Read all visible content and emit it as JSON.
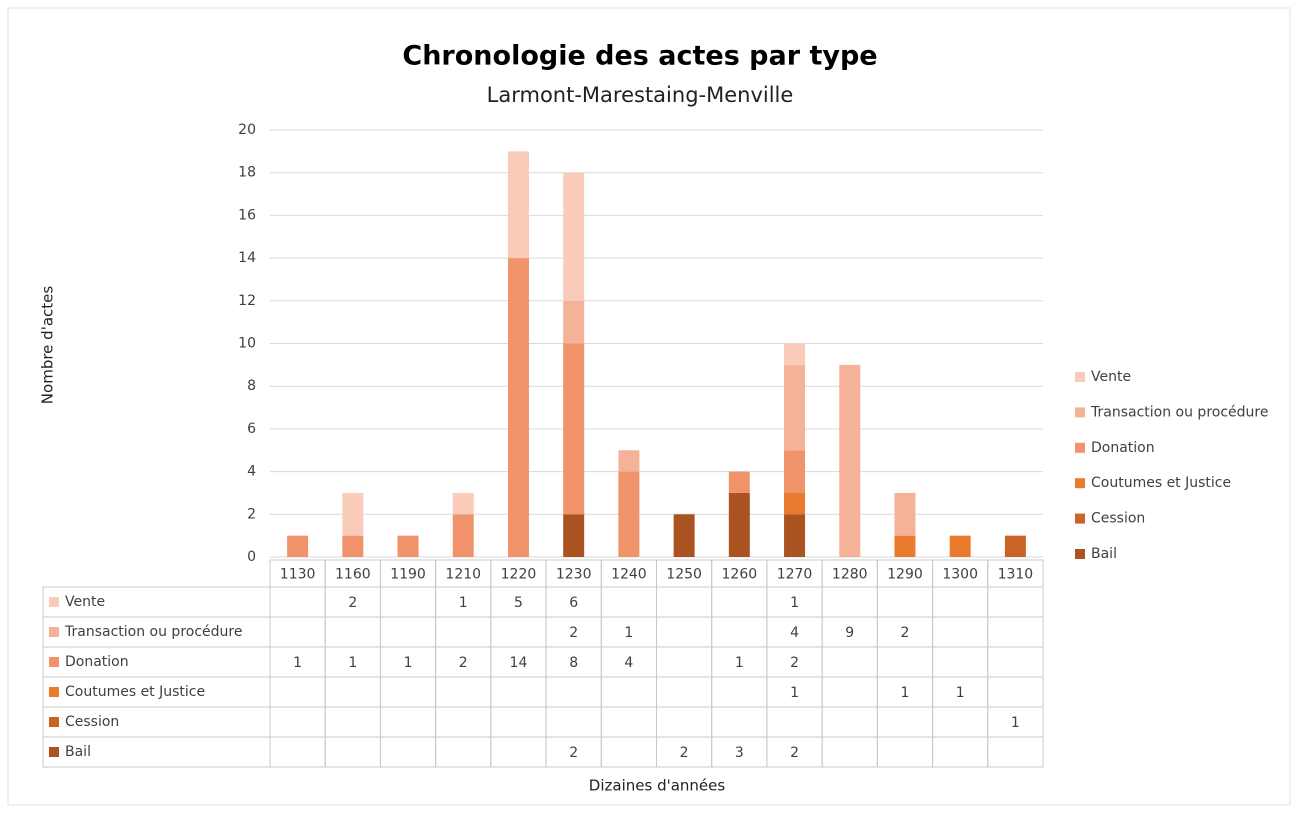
{
  "chart_data": {
    "type": "stacked_bar",
    "title": "Chronologie des actes par type",
    "subtitle": "Larmont-Marestaing-Menville",
    "y_label": "Nombre d'actes",
    "x_label": "Dizaines d'années",
    "categories": [
      "1130",
      "1160",
      "1190",
      "1210",
      "1220",
      "1230",
      "1240",
      "1250",
      "1260",
      "1270",
      "1280",
      "1290",
      "1300",
      "1310"
    ],
    "series": [
      {
        "name": "Vente",
        "color": "#f9cbb9",
        "values": [
          null,
          2,
          null,
          1,
          5,
          6,
          null,
          null,
          null,
          1,
          null,
          null,
          null,
          null
        ]
      },
      {
        "name": "Transaction ou procédure",
        "color": "#f4b398",
        "values": [
          null,
          null,
          null,
          null,
          null,
          2,
          1,
          null,
          null,
          4,
          9,
          2,
          null,
          null
        ]
      },
      {
        "name": "Donation",
        "color": "#f0936a",
        "values": [
          1,
          1,
          1,
          2,
          14,
          8,
          4,
          null,
          1,
          2,
          null,
          null,
          null,
          null
        ]
      },
      {
        "name": "Coutumes et Justice",
        "color": "#e97a2e",
        "values": [
          null,
          null,
          null,
          null,
          null,
          null,
          null,
          null,
          null,
          1,
          null,
          1,
          1,
          null
        ]
      },
      {
        "name": "Cession",
        "color": "#c96426",
        "values": [
          null,
          null,
          null,
          null,
          null,
          null,
          null,
          null,
          null,
          null,
          null,
          null,
          null,
          1
        ]
      },
      {
        "name": "Bail",
        "color": "#ab5320",
        "values": [
          null,
          null,
          null,
          null,
          null,
          2,
          null,
          2,
          3,
          2,
          null,
          null,
          null,
          null
        ]
      }
    ],
    "ylim": [
      0,
      20
    ],
    "yticks": [
      0,
      2,
      4,
      6,
      8,
      10,
      12,
      14,
      16,
      18,
      20
    ],
    "grid": true,
    "legend": "right"
  }
}
